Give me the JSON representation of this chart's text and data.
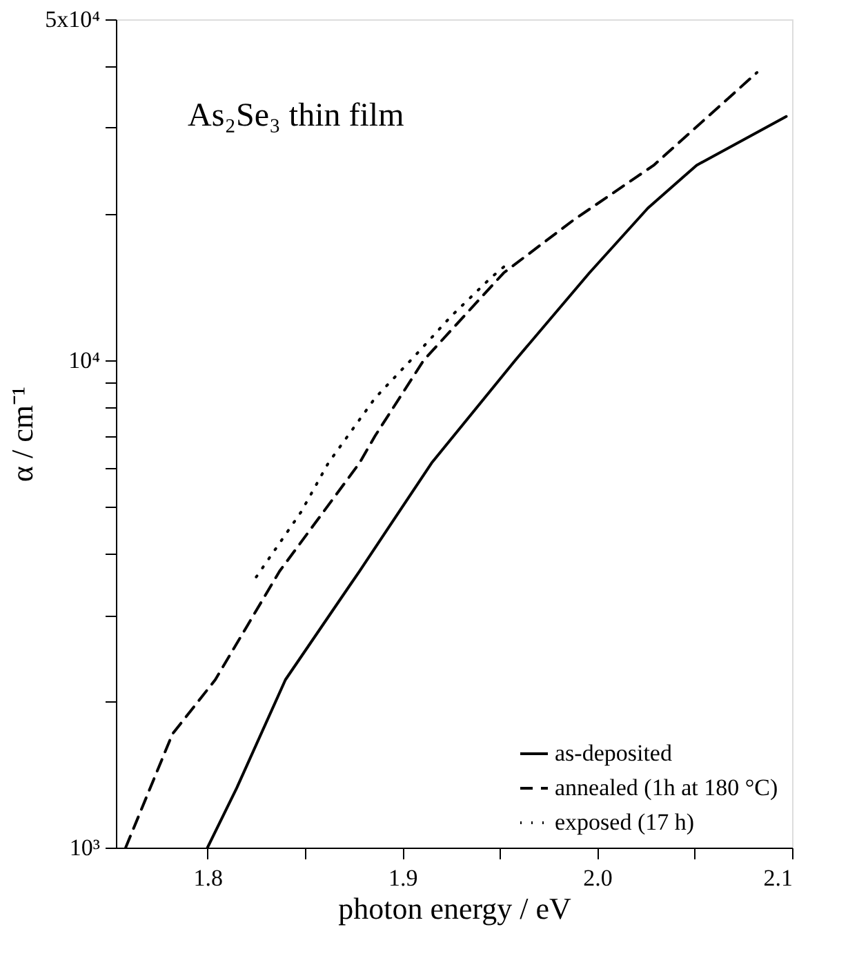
{
  "chart_data": {
    "type": "line",
    "xlabel": "photon energy / eV",
    "ylabel": "α / cm⁻¹",
    "annotations": [
      "As₂Se₃ thin film"
    ],
    "log": "y",
    "grid": false,
    "legend": "bottom right",
    "marker": "none",
    "xlim": [
      1.753,
      2.1
    ],
    "xticks": [
      1.8,
      {
        "value": 1.85,
        "label": null
      },
      1.9,
      {
        "value": 1.95,
        "label": null
      },
      {
        "value": 2.0,
        "label": "2.0"
      },
      {
        "value": 2.05,
        "label": null
      },
      2.1
    ],
    "ylim": [
      1000,
      50000
    ],
    "yticks": [
      {
        "value": 1000,
        "label": "10³"
      },
      {
        "value": 2000,
        "label": null
      },
      {
        "value": 3000,
        "label": null
      },
      {
        "value": 4000,
        "label": null
      },
      {
        "value": 5000,
        "label": null
      },
      {
        "value": 6000,
        "label": null
      },
      {
        "value": 7000,
        "label": null
      },
      {
        "value": 8000,
        "label": null
      },
      {
        "value": 9000,
        "label": null
      },
      {
        "value": 10000,
        "label": "10⁴"
      },
      {
        "value": 20000,
        "label": null
      },
      {
        "value": 30000,
        "label": null
      },
      {
        "value": 40000,
        "label": null
      },
      {
        "value": 50000,
        "label": "5x10⁴"
      }
    ],
    "series": [
      {
        "name": "as-deposited",
        "color": "#000000",
        "line_style": "solid",
        "x": [
          1.8,
          1.815,
          1.84,
          1.878,
          1.915,
          1.958,
          1.996,
          2.026,
          2.051,
          2.097
        ],
        "values": [
          1000,
          1325,
          2210,
          3690,
          6150,
          10000,
          15100,
          20500,
          25100,
          31600
        ]
      },
      {
        "name": "annealed (1h at 180 °C)",
        "color": "#000000",
        "line_style": "dashed",
        "x": [
          1.758,
          1.782,
          1.804,
          1.837,
          1.878,
          1.886,
          1.911,
          1.952,
          1.988,
          2.029,
          2.082
        ],
        "values": [
          1000,
          1710,
          2210,
          3690,
          6150,
          6990,
          10000,
          15100,
          19400,
          25100,
          38900
        ]
      },
      {
        "name": "exposed (17 h)",
        "color": "#000000",
        "line_style": "dotted",
        "x": [
          1.825,
          1.848,
          1.862,
          1.886,
          1.907,
          1.925,
          1.945,
          1.955
        ],
        "values": [
          3590,
          4880,
          6150,
          8360,
          10260,
          12300,
          14700,
          15900
        ]
      }
    ]
  }
}
